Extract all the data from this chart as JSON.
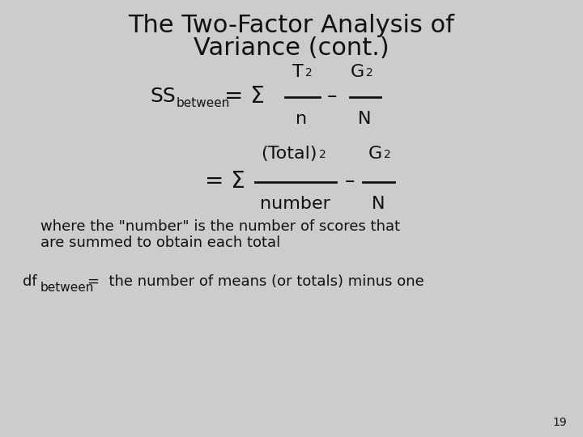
{
  "title_line1": "The Two-Factor Analysis of",
  "title_line2": "Variance (cont.)",
  "background_color": "#cccccc",
  "text_color": "#111111",
  "page_number": "19",
  "title_fontsize": 22,
  "body_fontsize": 16,
  "sub_fontsize": 10,
  "super_fontsize": 10,
  "small_fontsize": 13,
  "tiny_fontsize": 9
}
